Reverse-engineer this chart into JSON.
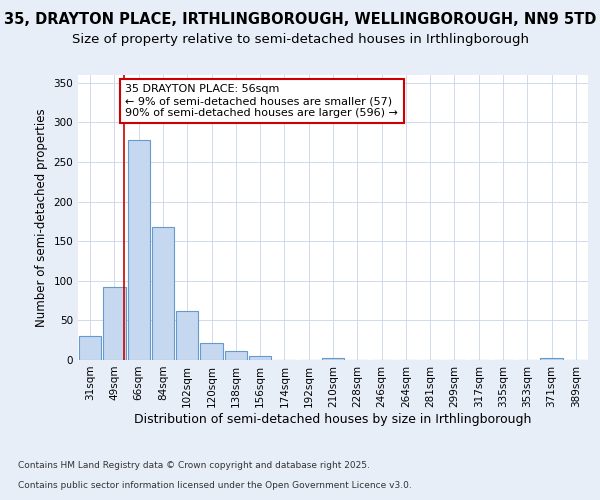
{
  "title_line1": "35, DRAYTON PLACE, IRTHLINGBOROUGH, WELLINGBOROUGH, NN9 5TD",
  "title_line2": "Size of property relative to semi-detached houses in Irthlingborough",
  "xlabel": "Distribution of semi-detached houses by size in Irthlingborough",
  "ylabel": "Number of semi-detached properties",
  "categories": [
    "31sqm",
    "49sqm",
    "66sqm",
    "84sqm",
    "102sqm",
    "120sqm",
    "138sqm",
    "156sqm",
    "174sqm",
    "192sqm",
    "210sqm",
    "228sqm",
    "246sqm",
    "264sqm",
    "281sqm",
    "299sqm",
    "317sqm",
    "335sqm",
    "353sqm",
    "371sqm",
    "389sqm"
  ],
  "values": [
    30,
    92,
    278,
    168,
    62,
    21,
    11,
    5,
    0,
    0,
    3,
    0,
    0,
    0,
    0,
    0,
    0,
    0,
    0,
    2,
    0
  ],
  "bar_color": "#c5d8f0",
  "bar_edge_color": "#6699cc",
  "annotation_text_line1": "35 DRAYTON PLACE: 56sqm",
  "annotation_text_line2": "← 9% of semi-detached houses are smaller (57)",
  "annotation_text_line3": "90% of semi-detached houses are larger (596) →",
  "annotation_box_color": "#ffffff",
  "annotation_box_edge": "#cc0000",
  "vline_color": "#cc0000",
  "ylim": [
    0,
    360
  ],
  "yticks": [
    0,
    50,
    100,
    150,
    200,
    250,
    300,
    350
  ],
  "footer_line1": "Contains HM Land Registry data © Crown copyright and database right 2025.",
  "footer_line2": "Contains public sector information licensed under the Open Government Licence v3.0.",
  "bg_color": "#e8eef8",
  "plot_bg_color": "#ffffff",
  "title_fontsize": 10.5,
  "subtitle_fontsize": 9.5,
  "ylabel_fontsize": 8.5,
  "xlabel_fontsize": 9,
  "tick_fontsize": 7.5,
  "annotation_fontsize": 8,
  "footer_fontsize": 6.5
}
